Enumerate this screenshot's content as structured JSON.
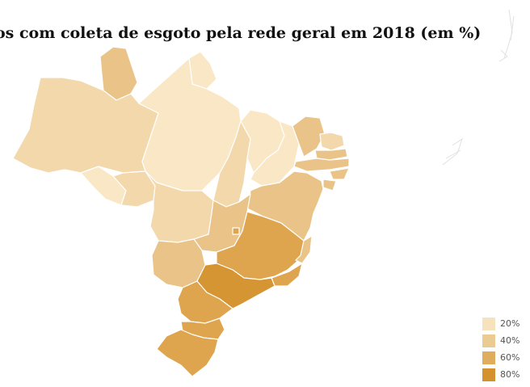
{
  "title": "os com coleta de esgoto pela rede geral em 2018 (em %)",
  "colors": {
    "c1": "#f9e7c6",
    "c2": "#f2d8ab",
    "c3": "#e9c388",
    "c4": "#dea54e",
    "c5": "#d59532"
  },
  "legend": {
    "items": [
      {
        "label": "20%",
        "color": "#f6e2bd"
      },
      {
        "label": "40%",
        "color": "#eccb93"
      },
      {
        "label": "60%",
        "color": "#e0ad5e"
      },
      {
        "label": "80%",
        "color": "#d4922e"
      }
    ]
  }
}
